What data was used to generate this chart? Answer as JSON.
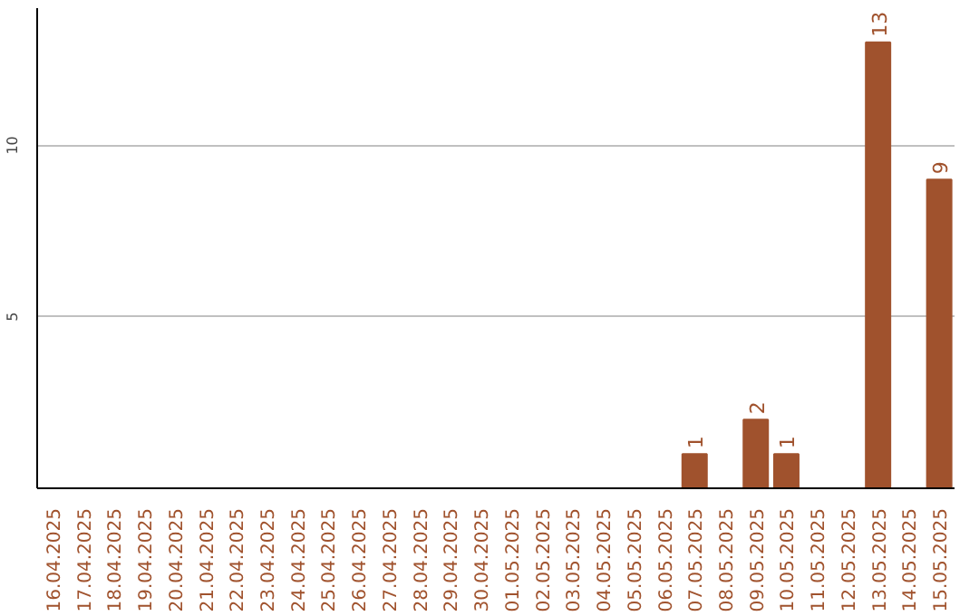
{
  "chart_data": {
    "type": "bar",
    "categories": [
      "16.04.2025",
      "17.04.2025",
      "18.04.2025",
      "19.04.2025",
      "20.04.2025",
      "21.04.2025",
      "22.04.2025",
      "23.04.2025",
      "24.04.2025",
      "25.04.2025",
      "26.04.2025",
      "27.04.2025",
      "28.04.2025",
      "29.04.2025",
      "30.04.2025",
      "01.05.2025",
      "02.05.2025",
      "03.05.2025",
      "04.05.2025",
      "05.05.2025",
      "06.05.2025",
      "07.05.2025",
      "08.05.2025",
      "09.05.2025",
      "10.05.2025",
      "11.05.2025",
      "12.05.2025",
      "13.05.2025",
      "14.05.2025",
      "15.05.2025"
    ],
    "values": [
      0,
      0,
      0,
      0,
      0,
      0,
      0,
      0,
      0,
      0,
      0,
      0,
      0,
      0,
      0,
      0,
      0,
      0,
      0,
      0,
      0,
      1,
      0,
      2,
      1,
      0,
      0,
      13,
      0,
      9
    ],
    "value_labels": [
      null,
      null,
      null,
      null,
      null,
      null,
      null,
      null,
      null,
      null,
      null,
      null,
      null,
      null,
      null,
      null,
      null,
      null,
      null,
      null,
      null,
      "1",
      null,
      "2",
      "1",
      null,
      null,
      "13",
      null,
      "9"
    ],
    "color": "#a0522d",
    "ylim": [
      0,
      14
    ],
    "yticks": [
      5,
      10
    ],
    "grid": "y"
  }
}
